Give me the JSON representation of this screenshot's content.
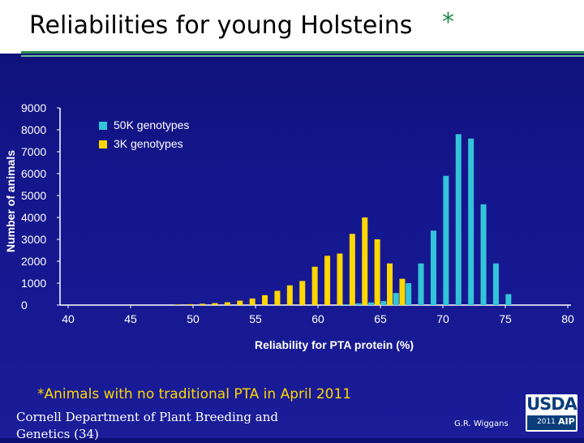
{
  "slide": {
    "title": "Reliabilities for young Holsteins",
    "title_asterisk": "*",
    "footnote": "*Animals with no traditional PTA in April 2011",
    "affiliation": "Cornell Department of Plant Breeding and Genetics (34)",
    "presenter": "G.R. Wiggans",
    "logo": {
      "text": "USDA",
      "year": "2011",
      "mark": "AIP"
    }
  },
  "colors": {
    "background": "#14168c",
    "series_50k": "#33c4d8",
    "series_3k": "#ffd700",
    "title_band": "#ffffff",
    "accent_green": "#2e8b57",
    "footnote": "#ffd700"
  },
  "chart_data": {
    "type": "bar",
    "title": "",
    "xlabel": "Reliability for PTA protein (%)",
    "ylabel": "Number of animals",
    "xlim": [
      40,
      80
    ],
    "ylim": [
      0,
      9000
    ],
    "xticks": [
      "40",
      "45",
      "50",
      "55",
      "60",
      "65",
      "70",
      "75",
      "80"
    ],
    "yticks": [
      "0",
      "1000",
      "2000",
      "3000",
      "4000",
      "5000",
      "6000",
      "7000",
      "8000",
      "9000"
    ],
    "legend_position": "top-left",
    "series": [
      {
        "name": "50K genotypes",
        "color": "#33c4d8",
        "points": [
          {
            "x": 62,
            "y": 30
          },
          {
            "x": 63,
            "y": 80
          },
          {
            "x": 64,
            "y": 120
          },
          {
            "x": 65,
            "y": 180
          },
          {
            "x": 66,
            "y": 550
          },
          {
            "x": 67,
            "y": 1000
          },
          {
            "x": 68,
            "y": 1900
          },
          {
            "x": 69,
            "y": 3400
          },
          {
            "x": 70,
            "y": 5900
          },
          {
            "x": 71,
            "y": 7800
          },
          {
            "x": 72,
            "y": 7600
          },
          {
            "x": 73,
            "y": 4600
          },
          {
            "x": 74,
            "y": 1900
          },
          {
            "x": 75,
            "y": 500
          }
        ]
      },
      {
        "name": "3K genotypes",
        "color": "#ffd700",
        "points": [
          {
            "x": 49,
            "y": 20
          },
          {
            "x": 50,
            "y": 40
          },
          {
            "x": 51,
            "y": 60
          },
          {
            "x": 52,
            "y": 90
          },
          {
            "x": 53,
            "y": 130
          },
          {
            "x": 54,
            "y": 200
          },
          {
            "x": 55,
            "y": 300
          },
          {
            "x": 56,
            "y": 450
          },
          {
            "x": 57,
            "y": 650
          },
          {
            "x": 58,
            "y": 900
          },
          {
            "x": 59,
            "y": 1100
          },
          {
            "x": 60,
            "y": 1750
          },
          {
            "x": 61,
            "y": 2250
          },
          {
            "x": 62,
            "y": 2350
          },
          {
            "x": 63,
            "y": 3250
          },
          {
            "x": 64,
            "y": 4000
          },
          {
            "x": 65,
            "y": 3000
          },
          {
            "x": 66,
            "y": 1900
          },
          {
            "x": 67,
            "y": 1200
          }
        ]
      }
    ]
  }
}
